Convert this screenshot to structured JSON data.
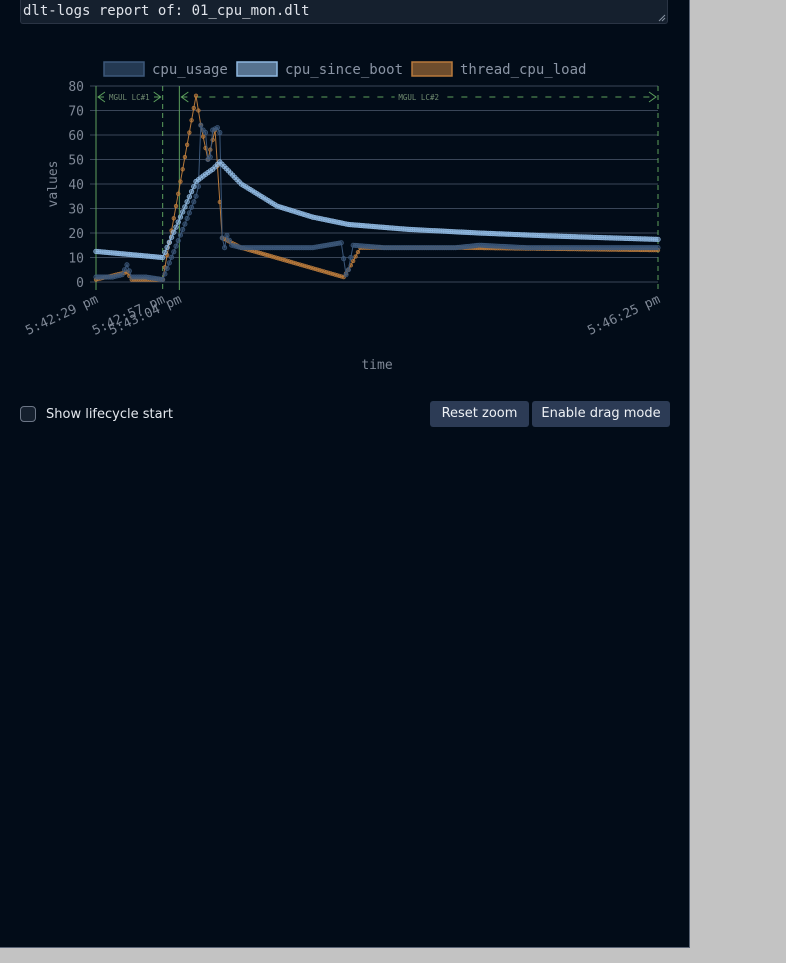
{
  "report": {
    "text": "dlt-logs report of: 01_cpu_mon.dlt"
  },
  "controls": {
    "lifecycle_label": "Show lifecycle start",
    "reset_zoom_label": "Reset zoom",
    "drag_mode_label": "Enable drag mode"
  },
  "colors": {
    "panel_bg": "#020c18",
    "cpu_usage": "#3c587a",
    "cpu_since_boot": "#8fb8e0",
    "thread_cpu_load": "#b87a3c",
    "lifecycle_marker": "#5da05d"
  },
  "chart_data": {
    "type": "line",
    "title": "",
    "xlabel": "time",
    "ylabel": "values",
    "ylim": [
      0,
      80
    ],
    "yticks": [
      0,
      10,
      20,
      30,
      40,
      50,
      60,
      70,
      80
    ],
    "xticks": [
      "5:42:29 pm",
      "5:42:57 pm",
      "5:43:04 pm",
      "5:46:25 pm"
    ],
    "legend_position": "top",
    "grid": true,
    "lifecycles": [
      {
        "label": "MGUL LC#1",
        "start": "5:42:29 pm",
        "end": "5:42:57 pm"
      },
      {
        "label": "MGUL LC#2",
        "start": "5:43:04 pm",
        "end": "5:46:25 pm"
      }
    ],
    "series": [
      {
        "name": "cpu_usage",
        "color": "#3c587a",
        "points": [
          [
            "5:42:29 pm",
            2
          ],
          [
            "5:42:36 pm",
            2
          ],
          [
            "5:42:40 pm",
            3
          ],
          [
            "5:42:42 pm",
            7
          ],
          [
            "5:42:44 pm",
            2
          ],
          [
            "5:42:50 pm",
            2
          ],
          [
            "5:42:57 pm",
            1
          ],
          [
            "5:43:11 pm",
            35
          ],
          [
            "5:43:12 pm",
            39
          ],
          [
            "5:43:13 pm",
            64
          ],
          [
            "5:43:14 pm",
            62
          ],
          [
            "5:43:15 pm",
            61
          ],
          [
            "5:43:16 pm",
            50
          ],
          [
            "5:43:17 pm",
            51
          ],
          [
            "5:43:18 pm",
            62
          ],
          [
            "5:43:20 pm",
            63
          ],
          [
            "5:43:21 pm",
            61
          ],
          [
            "5:43:22 pm",
            18
          ],
          [
            "5:43:23 pm",
            14
          ],
          [
            "5:43:24 pm",
            19
          ],
          [
            "5:43:26 pm",
            15
          ],
          [
            "5:43:30 pm",
            14
          ],
          [
            "5:43:45 pm",
            14
          ],
          [
            "5:44:00 pm",
            14
          ],
          [
            "5:44:12 pm",
            16
          ],
          [
            "5:44:14 pm",
            3
          ],
          [
            "5:44:15 pm",
            5
          ],
          [
            "5:44:17 pm",
            15
          ],
          [
            "5:44:30 pm",
            14
          ],
          [
            "5:45:00 pm",
            14
          ],
          [
            "5:45:10 pm",
            15
          ],
          [
            "5:45:30 pm",
            14
          ],
          [
            "5:46:00 pm",
            14
          ],
          [
            "5:46:25 pm",
            14
          ]
        ]
      },
      {
        "name": "cpu_since_boot",
        "color": "#8fb8e0",
        "points": [
          [
            "5:42:29 pm",
            12.5
          ],
          [
            "5:42:57 pm",
            10
          ],
          [
            "5:43:11 pm",
            41
          ],
          [
            "5:43:15 pm",
            44
          ],
          [
            "5:43:18 pm",
            46
          ],
          [
            "5:43:21 pm",
            49
          ],
          [
            "5:43:30 pm",
            40
          ],
          [
            "5:43:45 pm",
            31
          ],
          [
            "5:44:00 pm",
            26.5
          ],
          [
            "5:44:15 pm",
            23.5
          ],
          [
            "5:44:40 pm",
            21.5
          ],
          [
            "5:45:10 pm",
            20
          ],
          [
            "5:45:40 pm",
            18.8
          ],
          [
            "5:46:25 pm",
            17.4
          ]
        ]
      },
      {
        "name": "thread_cpu_load",
        "color": "#b87a3c",
        "points": [
          [
            "5:42:29 pm",
            1
          ],
          [
            "5:42:42 pm",
            4
          ],
          [
            "5:42:44 pm",
            1
          ],
          [
            "5:42:57 pm",
            1
          ],
          [
            "5:43:11 pm",
            76
          ],
          [
            "5:43:13 pm",
            64
          ],
          [
            "5:43:16 pm",
            50
          ],
          [
            "5:43:19 pm",
            62
          ],
          [
            "5:43:22 pm",
            18
          ],
          [
            "5:43:30 pm",
            14
          ],
          [
            "5:44:13 pm",
            2
          ],
          [
            "5:44:15 pm",
            5
          ],
          [
            "5:44:20 pm",
            14
          ],
          [
            "5:45:00 pm",
            14
          ],
          [
            "5:46:25 pm",
            13
          ]
        ]
      }
    ]
  }
}
